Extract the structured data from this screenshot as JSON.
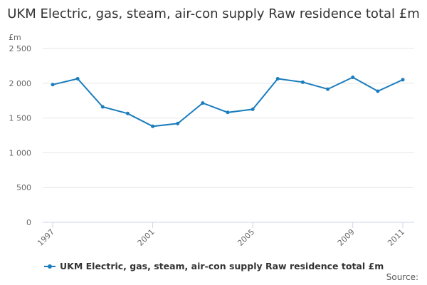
{
  "chart_data": {
    "type": "line",
    "title": "UKM Electric, gas, steam, air-con supply Raw residence total £m",
    "ylabel": "£m",
    "xlabel": "",
    "x": [
      1997,
      1998,
      1999,
      2000,
      2001,
      2002,
      2003,
      2004,
      2005,
      2006,
      2007,
      2008,
      2009,
      2010,
      2011
    ],
    "x_tick_labels": [
      "1997",
      "2001",
      "2005",
      "2009",
      "2011"
    ],
    "x_tick_values": [
      1997,
      2001,
      2005,
      2009,
      2011
    ],
    "y_ticks": [
      0,
      500,
      1000,
      1500,
      2000,
      2500
    ],
    "y_tick_labels": [
      "0",
      "500",
      "1 000",
      "1 500",
      "2 000",
      "2 500"
    ],
    "ylim": [
      0,
      2500
    ],
    "series": [
      {
        "name": "UKM Electric, gas, steam, air-con supply Raw residence total £m",
        "color": "#1a7dbd",
        "values": [
          1980,
          2065,
          1660,
          1565,
          1380,
          1420,
          1715,
          1580,
          1625,
          2065,
          2015,
          1915,
          2085,
          1885,
          2050
        ]
      }
    ],
    "grid": true,
    "legend_position": "bottom-left"
  },
  "source_label": "Source:"
}
